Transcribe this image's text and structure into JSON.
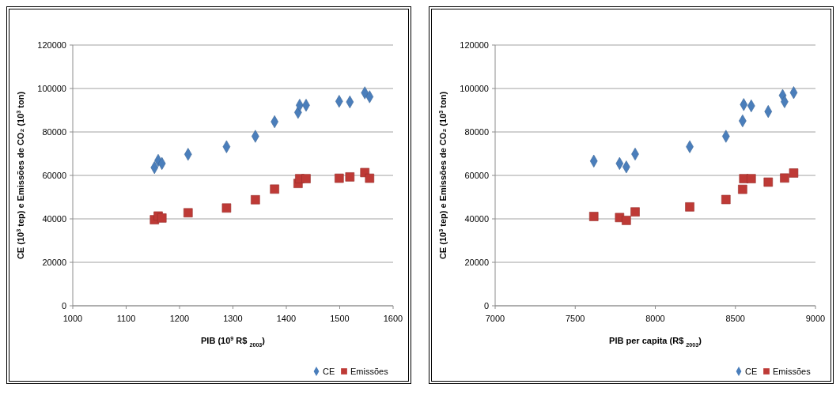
{
  "chart_data": [
    {
      "type": "scatter",
      "xlabel": "PIB (10$^{9}$ R$ $_{2003}$)",
      "ylabel": "CE (10$^{3}$ tep) e Emissões de CO₂ (10$^{3}$ ton)",
      "xlim": [
        1000,
        1600
      ],
      "xticks": [
        1000,
        1100,
        1200,
        1300,
        1400,
        1500,
        1600
      ],
      "ylim": [
        0,
        120000
      ],
      "yticks": [
        0,
        20000,
        40000,
        60000,
        80000,
        100000,
        120000
      ],
      "grid": "y",
      "legend": "bottom right",
      "series": [
        {
          "name": "CE",
          "color": "#4a7ebb",
          "marker": "diamond",
          "x": [
            1153,
            1160,
            1167,
            1216,
            1288,
            1342,
            1378,
            1422,
            1425,
            1437,
            1499,
            1519,
            1547,
            1556
          ],
          "values": [
            63600,
            66900,
            65500,
            69700,
            73200,
            78000,
            84700,
            89000,
            92300,
            92300,
            94100,
            93800,
            98000,
            96200
          ]
        },
        {
          "name": "Emissões",
          "color": "#be3a36",
          "marker": "square",
          "x": [
            1153,
            1160,
            1167,
            1216,
            1288,
            1342,
            1378,
            1422,
            1425,
            1437,
            1499,
            1519,
            1547,
            1556
          ],
          "values": [
            39600,
            41300,
            40400,
            42800,
            45000,
            48800,
            53700,
            56300,
            58500,
            58500,
            58700,
            59300,
            61300,
            58700
          ]
        }
      ]
    },
    {
      "type": "scatter",
      "xlabel": "PIB per capita (R$ $_{2003}$)",
      "ylabel": "CE (10$^{3}$ tep) e Emissões de CO₂ (10$^{3}$ ton)",
      "xlim": [
        7000,
        9000
      ],
      "xticks": [
        7000,
        7500,
        8000,
        8500,
        9000
      ],
      "ylim": [
        0,
        120000
      ],
      "yticks": [
        0,
        20000,
        40000,
        60000,
        80000,
        100000,
        120000
      ],
      "grid": "y",
      "legend": "bottom right",
      "series": [
        {
          "name": "CE",
          "color": "#4a7ebb",
          "marker": "diamond",
          "x": [
            7616,
            7777,
            7819,
            7874,
            8215,
            8441,
            8545,
            8552,
            8599,
            8705,
            8795,
            8807,
            8864
          ],
          "values": [
            66600,
            65500,
            63900,
            69800,
            73200,
            78000,
            85100,
            92600,
            92000,
            89400,
            96800,
            93900,
            98100
          ]
        },
        {
          "name": "Emissões",
          "color": "#be3a36",
          "marker": "square",
          "x": [
            7616,
            7777,
            7819,
            7874,
            8215,
            8441,
            8545,
            8552,
            8599,
            8705,
            8807,
            8864
          ],
          "values": [
            41100,
            40600,
            39300,
            43200,
            45500,
            48900,
            53600,
            58500,
            58500,
            56900,
            58800,
            61100
          ]
        }
      ]
    }
  ]
}
